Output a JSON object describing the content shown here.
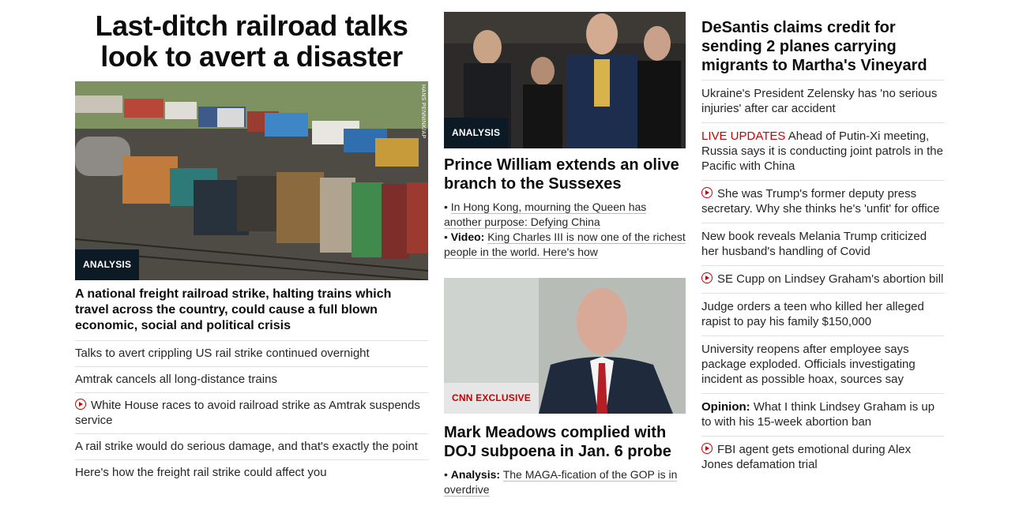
{
  "left": {
    "headline": "Last-ditch railroad talks look to avert a disaster",
    "image_credit": "HANS PENNINK/AP",
    "badge": "ANALYSIS",
    "caption": "A national freight railroad strike, halting trains which travel across the country, could cause a full blown economic, social and political crisis",
    "links": [
      {
        "text": "Talks to avert crippling US rail strike continued overnight",
        "video": false
      },
      {
        "text": "Amtrak cancels all long-distance trains",
        "video": false
      },
      {
        "text": "White House races to avoid railroad strike as Amtrak suspends service",
        "video": true
      },
      {
        "text": "A rail strike would do serious damage, and that's exactly the point",
        "video": false
      },
      {
        "text": "Here's how the freight rail strike could affect you",
        "video": false
      }
    ]
  },
  "middle": {
    "story1": {
      "badge": "ANALYSIS",
      "headline": "Prince William extends an olive branch to the Sussexes",
      "sub": [
        {
          "prefix": "",
          "text": "In Hong Kong, mourning the Queen has another purpose: Defying China"
        },
        {
          "prefix": "Video:",
          "text": "King Charles III is now one of the richest people in the world. Here's how"
        }
      ]
    },
    "story2": {
      "badge": "CNN EXCLUSIVE",
      "headline": "Mark Meadows complied with DOJ subpoena in Jan. 6 probe",
      "sub": [
        {
          "prefix": "Analysis:",
          "text": "The MAGA-fication of the GOP is in overdrive"
        }
      ]
    }
  },
  "right": {
    "headline": "DeSantis claims credit for sending 2 planes carrying migrants to Martha's Vineyard",
    "links": [
      {
        "text": "Ukraine's President Zelensky has 'no serious injuries' after car accident"
      },
      {
        "live": "LIVE UPDATES",
        "text": "Ahead of Putin-Xi meeting, Russia says it is conducting joint patrols in the Pacific with China"
      },
      {
        "video": true,
        "text": "She was Trump's former deputy press secretary. Why she thinks he's 'unfit' for office"
      },
      {
        "text": "New book reveals Melania Trump criticized her husband's handling of Covid"
      },
      {
        "video": true,
        "text": "SE Cupp on Lindsey Graham's abortion bill"
      },
      {
        "text": "Judge orders a teen who killed her alleged rapist to pay his family $150,000"
      },
      {
        "text": "University reopens after employee says package exploded. Officials investigating incident as possible hoax, sources say"
      },
      {
        "opinion": "Opinion:",
        "text": "What I think Lindsey Graham is up to with his 15-week abortion ban"
      },
      {
        "video": true,
        "text": "FBI agent gets emotional during Alex Jones defamation trial"
      }
    ]
  },
  "colors": {
    "accent_red": "#cc0000",
    "badge_dark": "#0c1a26",
    "divider": "#e0e0e0"
  },
  "icons": {
    "video": "play-circle-icon"
  }
}
